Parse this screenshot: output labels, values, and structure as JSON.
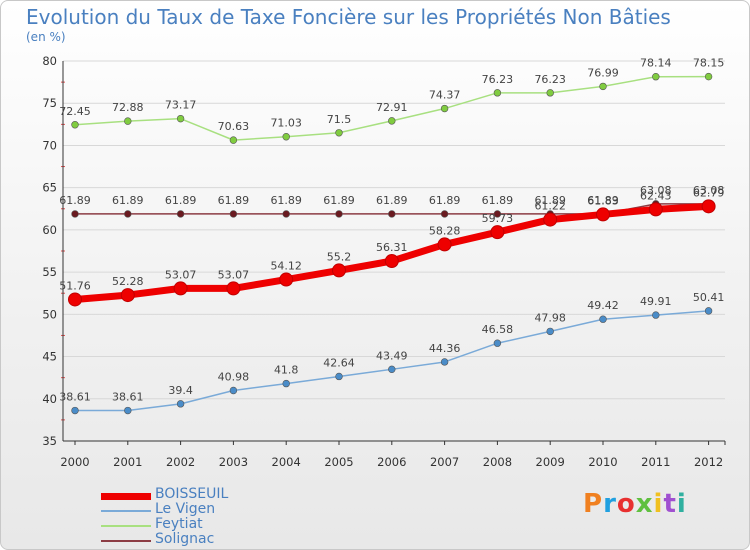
{
  "header": {
    "title": "Evolution du Taux de Taxe Foncière sur les Propriétés Non Bâties",
    "unit": "(en %)"
  },
  "logo": {
    "text": "Proxiti",
    "colors": [
      "#f08020",
      "#20a0e0",
      "#e83030",
      "#60c040",
      "#f0c020",
      "#a050d0",
      "#30b0a0"
    ]
  },
  "chart_data": {
    "type": "line",
    "x": [
      "2000",
      "2001",
      "2002",
      "2003",
      "2004",
      "2005",
      "2006",
      "2007",
      "2008",
      "2009",
      "2010",
      "2011",
      "2012"
    ],
    "ylim": [
      35,
      80
    ],
    "yticks": [
      35,
      40,
      45,
      50,
      55,
      60,
      65,
      70,
      75,
      80
    ],
    "grid": "horizontal",
    "legend_position": "bottom-left",
    "series": [
      {
        "name": "BOISSEUIL",
        "color": "#ee0000",
        "marker": "#ee0000",
        "width": 7,
        "values": [
          51.76,
          52.28,
          53.07,
          53.07,
          54.12,
          55.2,
          56.31,
          58.28,
          59.73,
          61.22,
          61.83,
          62.43,
          62.79
        ],
        "labels": [
          "51.76",
          "52.28",
          "53.07",
          "53.07",
          "54.12",
          "55.2",
          "56.31",
          "58.28",
          "59.73",
          "61.22",
          "61.83",
          "62.43",
          "62.79"
        ]
      },
      {
        "name": "Le Vigen",
        "color": "#7aaad8",
        "marker": "#4a8cc8",
        "width": 1.5,
        "values": [
          38.61,
          38.61,
          39.4,
          40.98,
          41.8,
          42.64,
          43.49,
          44.36,
          46.58,
          47.98,
          49.42,
          49.91,
          50.41
        ],
        "labels": [
          "38.61",
          "38.61",
          "39.4",
          "40.98",
          "41.8",
          "42.64",
          "43.49",
          "44.36",
          "46.58",
          "47.98",
          "49.42",
          "49.91",
          "50.41"
        ]
      },
      {
        "name": "Feytiat",
        "color": "#a8e080",
        "marker": "#80cc40",
        "width": 1.5,
        "values": [
          72.45,
          72.88,
          73.17,
          70.63,
          71.03,
          71.5,
          72.91,
          74.37,
          76.23,
          76.23,
          76.99,
          78.14,
          78.15
        ],
        "labels": [
          "72.45",
          "72.88",
          "73.17",
          "70.63",
          "71.03",
          "71.5",
          "72.91",
          "74.37",
          "76.23",
          "76.23",
          "76.99",
          "78.14",
          "78.15"
        ]
      },
      {
        "name": "Solignac",
        "color": "#8c3c44",
        "marker": "#6a1a20",
        "width": 1.5,
        "values": [
          61.89,
          61.89,
          61.89,
          61.89,
          61.89,
          61.89,
          61.89,
          61.89,
          61.89,
          61.89,
          61.89,
          63.08,
          63.08
        ],
        "labels": [
          "61.89",
          "61.89",
          "61.89",
          "61.89",
          "61.89",
          "61.89",
          "61.89",
          "61.89",
          "61.89",
          "61.89",
          "61.89",
          "63.08",
          "63.08"
        ]
      }
    ]
  }
}
